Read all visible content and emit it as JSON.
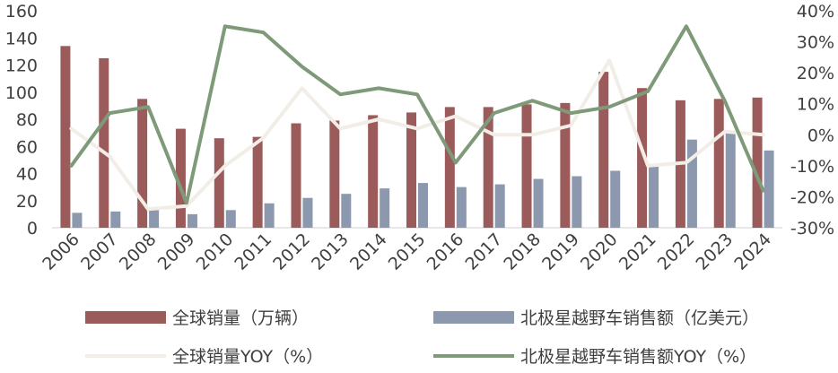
{
  "chart_data": {
    "type": "bar+line",
    "categories": [
      "2006",
      "2007",
      "2008",
      "2009",
      "2010",
      "2011",
      "2012",
      "2013",
      "2014",
      "2015",
      "2016",
      "2017",
      "2018",
      "2019",
      "2020",
      "2021",
      "2022",
      "2023",
      "2024"
    ],
    "left_axis": {
      "min": 0,
      "max": 160,
      "step": 20,
      "tick_labels": [
        "0",
        "20",
        "40",
        "60",
        "80",
        "100",
        "120",
        "140",
        "160"
      ]
    },
    "right_axis": {
      "min": -30,
      "max": 40,
      "step": 10,
      "tick_labels": [
        "-30%",
        "-20%",
        "-10%",
        "0%",
        "10%",
        "20%",
        "30%",
        "40%"
      ]
    },
    "series": [
      {
        "name": "全球销量（万辆）",
        "type": "bar",
        "axis": "left",
        "color": "#9c5b5b",
        "values": [
          134,
          125,
          95,
          73,
          66,
          67,
          77,
          79,
          83,
          85,
          89,
          89,
          91,
          92,
          115,
          103,
          94,
          95,
          96
        ]
      },
      {
        "name": "北极星越野车销售额（亿美元）",
        "type": "bar",
        "axis": "left",
        "color": "#8b98ad",
        "values": [
          11,
          12,
          13,
          10,
          13,
          18,
          22,
          25,
          29,
          33,
          30,
          32,
          36,
          38,
          42,
          47,
          65,
          70,
          57
        ]
      },
      {
        "name": "全球销量YOY（%）",
        "type": "line",
        "axis": "right",
        "color": "#f2ede6",
        "values": [
          2,
          -7,
          -24,
          -23,
          -10,
          -1,
          15,
          2,
          5,
          2,
          6,
          0,
          0,
          3,
          24,
          -10,
          -9,
          1,
          0
        ]
      },
      {
        "name": "北极星越野车销售额YOY（%）",
        "type": "line",
        "axis": "right",
        "color": "#7e9a78",
        "values": [
          -10,
          7,
          9,
          -22,
          35,
          33,
          22,
          13,
          15,
          13,
          -9,
          7,
          11,
          7,
          9,
          14,
          35,
          11,
          -18
        ]
      }
    ],
    "grid": false,
    "legend_placement": "bottom"
  }
}
